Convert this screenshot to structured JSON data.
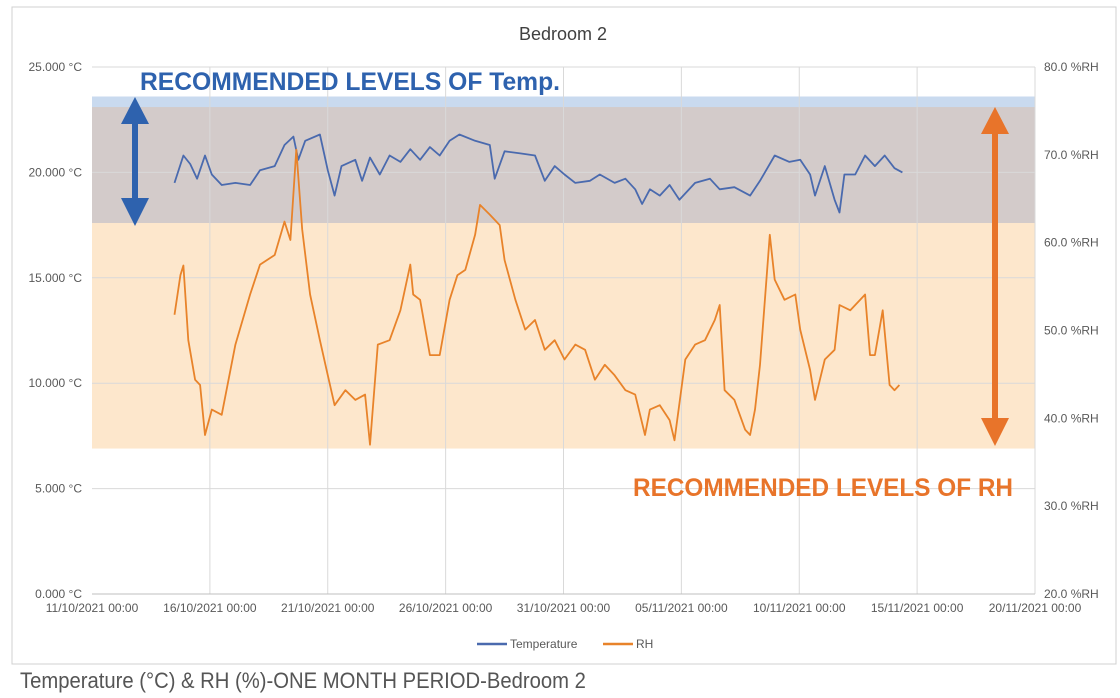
{
  "caption": "Temperature (°C) & RH (%)-ONE MONTH PERIOD-Bedroom 2",
  "chart_data": {
    "type": "line",
    "title": "Bedroom 2",
    "x_ticks": [
      "11/10/2021 00:00",
      "16/10/2021 00:00",
      "21/10/2021 00:00",
      "26/10/2021 00:00",
      "31/10/2021 00:00",
      "05/11/2021 00:00",
      "10/11/2021 00:00",
      "15/11/2021 00:00",
      "20/11/2021 00:00"
    ],
    "xlim": [
      "11/10/2021 00:00",
      "20/11/2021 00:00"
    ],
    "y_left": {
      "ticks": [
        "0.000 °C",
        "5.000 °C",
        "10.000 °C",
        "15.000 °C",
        "20.000 °C",
        "25.000 °C"
      ],
      "lim": [
        0,
        25
      ],
      "unit": "°C"
    },
    "y_right": {
      "ticks": [
        "20.0 %RH",
        "30.0 %RH",
        "40.0 %RH",
        "50.0 %RH",
        "60.0 %RH",
        "70.0 %RH",
        "80.0 %RH"
      ],
      "lim": [
        20,
        80
      ],
      "unit": "%RH"
    },
    "grid": "vertical and horizontal",
    "legend": {
      "placement": "bottom",
      "entries": [
        "Temperature",
        "RH"
      ]
    },
    "colors": {
      "temperature": "#4A6AAE",
      "rh": "#E8832A",
      "temp_band": "#D3CBCA",
      "temp_band_top": "#C9DAEF",
      "rh_band": "#FDE7CC",
      "temp_annotation": "#2E62AE",
      "rh_annotation": "#E8742A"
    },
    "bands_degC": {
      "temp_band": [
        17.6,
        23.3
      ],
      "temp_band_top": [
        23.1,
        23.6
      ],
      "rh_band": [
        6.9,
        17.6
      ]
    },
    "annotations": {
      "temp": "RECOMMENDED LEVELS OF  Temp.",
      "rh": "RECOMMENDED LEVELS OF  RH"
    },
    "series": [
      {
        "name": "Temperature",
        "axis": "left",
        "points": [
          [
            "14/10/2021 12:00",
            19.5
          ],
          [
            "14/10/2021 21:00",
            20.8
          ],
          [
            "15/10/2021 04:00",
            20.4
          ],
          [
            "15/10/2021 11:00",
            19.7
          ],
          [
            "15/10/2021 19:00",
            20.8
          ],
          [
            "16/10/2021 02:00",
            19.9
          ],
          [
            "16/10/2021 12:00",
            19.4
          ],
          [
            "17/10/2021 02:00",
            19.5
          ],
          [
            "17/10/2021 17:00",
            19.4
          ],
          [
            "18/10/2021 03:00",
            20.1
          ],
          [
            "18/10/2021 18:00",
            20.3
          ],
          [
            "19/10/2021 04:00",
            21.3
          ],
          [
            "19/10/2021 13:00",
            21.7
          ],
          [
            "19/10/2021 18:00",
            20.6
          ],
          [
            "20/10/2021 01:00",
            21.5
          ],
          [
            "20/10/2021 16:00",
            21.8
          ],
          [
            "21/10/2021 00:00",
            20.1
          ],
          [
            "21/10/2021 07:00",
            18.9
          ],
          [
            "21/10/2021 14:00",
            20.3
          ],
          [
            "22/10/2021 04:00",
            20.6
          ],
          [
            "22/10/2021 11:00",
            19.6
          ],
          [
            "22/10/2021 19:00",
            20.7
          ],
          [
            "23/10/2021 05:00",
            19.9
          ],
          [
            "23/10/2021 15:00",
            20.8
          ],
          [
            "24/10/2021 02:00",
            20.5
          ],
          [
            "24/10/2021 12:00",
            21.1
          ],
          [
            "24/10/2021 22:00",
            20.6
          ],
          [
            "25/10/2021 08:00",
            21.2
          ],
          [
            "25/10/2021 18:00",
            20.8
          ],
          [
            "26/10/2021 04:00",
            21.5
          ],
          [
            "26/10/2021 14:00",
            21.8
          ],
          [
            "27/10/2021 06:00",
            21.5
          ],
          [
            "27/10/2021 21:00",
            21.3
          ],
          [
            "28/10/2021 02:00",
            19.7
          ],
          [
            "28/10/2021 12:00",
            21.0
          ],
          [
            "29/10/2021 04:00",
            20.9
          ],
          [
            "29/10/2021 19:00",
            20.8
          ],
          [
            "30/10/2021 05:00",
            19.6
          ],
          [
            "30/10/2021 15:00",
            20.3
          ],
          [
            "31/10/2021 01:00",
            19.9
          ],
          [
            "31/10/2021 12:00",
            19.5
          ],
          [
            "01/11/2021 03:00",
            19.6
          ],
          [
            "01/11/2021 13:00",
            19.9
          ],
          [
            "02/11/2021 04:00",
            19.5
          ],
          [
            "02/11/2021 15:00",
            19.7
          ],
          [
            "03/11/2021 01:00",
            19.2
          ],
          [
            "03/11/2021 08:00",
            18.5
          ],
          [
            "03/11/2021 16:00",
            19.2
          ],
          [
            "04/11/2021 02:00",
            18.9
          ],
          [
            "04/11/2021 12:00",
            19.4
          ],
          [
            "04/11/2021 22:00",
            18.7
          ],
          [
            "05/11/2021 14:00",
            19.5
          ],
          [
            "06/11/2021 05:00",
            19.7
          ],
          [
            "06/11/2021 15:00",
            19.2
          ],
          [
            "07/11/2021 06:00",
            19.3
          ],
          [
            "07/11/2021 22:00",
            18.9
          ],
          [
            "08/11/2021 08:00",
            19.6
          ],
          [
            "08/11/2021 23:00",
            20.8
          ],
          [
            "09/11/2021 14:00",
            20.5
          ],
          [
            "10/11/2021 01:00",
            20.6
          ],
          [
            "10/11/2021 11:00",
            19.9
          ],
          [
            "10/11/2021 16:00",
            18.9
          ],
          [
            "11/11/2021 02:00",
            20.3
          ],
          [
            "11/11/2021 12:00",
            18.7
          ],
          [
            "11/11/2021 17:00",
            18.1
          ],
          [
            "11/11/2021 22:00",
            19.9
          ],
          [
            "12/11/2021 09:00",
            19.9
          ],
          [
            "12/11/2021 19:00",
            20.8
          ],
          [
            "13/11/2021 05:00",
            20.3
          ],
          [
            "13/11/2021 15:00",
            20.8
          ],
          [
            "14/11/2021 01:00",
            20.2
          ],
          [
            "14/11/2021 09:00",
            20.0
          ]
        ]
      },
      {
        "name": "RH",
        "axis": "right",
        "points": [
          [
            "14/10/2021 12:00",
            51.8
          ],
          [
            "14/10/2021 18:00",
            56.3
          ],
          [
            "14/10/2021 21:00",
            57.4
          ],
          [
            "15/10/2021 02:00",
            48.9
          ],
          [
            "15/10/2021 09:00",
            44.4
          ],
          [
            "15/10/2021 14:00",
            43.8
          ],
          [
            "15/10/2021 19:00",
            38.1
          ],
          [
            "16/10/2021 02:00",
            41.0
          ],
          [
            "16/10/2021 12:00",
            40.4
          ],
          [
            "17/10/2021 02:00",
            48.4
          ],
          [
            "17/10/2021 17:00",
            54.1
          ],
          [
            "18/10/2021 03:00",
            57.5
          ],
          [
            "18/10/2021 18:00",
            58.6
          ],
          [
            "19/10/2021 04:00",
            62.4
          ],
          [
            "19/10/2021 10:00",
            60.3
          ],
          [
            "19/10/2021 16:00",
            70.6
          ],
          [
            "19/10/2021 22:00",
            61.5
          ],
          [
            "20/10/2021 06:00",
            54.1
          ],
          [
            "20/10/2021 16:00",
            48.9
          ],
          [
            "21/10/2021 00:00",
            44.9
          ],
          [
            "21/10/2021 07:00",
            41.5
          ],
          [
            "21/10/2021 18:00",
            43.2
          ],
          [
            "22/10/2021 04:00",
            42.1
          ],
          [
            "22/10/2021 14:00",
            42.7
          ],
          [
            "22/10/2021 19:00",
            37.0
          ],
          [
            "23/10/2021 03:00",
            48.4
          ],
          [
            "23/10/2021 15:00",
            48.9
          ],
          [
            "24/10/2021 02:00",
            52.3
          ],
          [
            "24/10/2021 12:00",
            57.5
          ],
          [
            "24/10/2021 15:00",
            54.1
          ],
          [
            "24/10/2021 22:00",
            53.5
          ],
          [
            "25/10/2021 08:00",
            47.2
          ],
          [
            "25/10/2021 18:00",
            47.2
          ],
          [
            "26/10/2021 04:00",
            53.5
          ],
          [
            "26/10/2021 12:00",
            56.3
          ],
          [
            "26/10/2021 20:00",
            56.9
          ],
          [
            "27/10/2021 06:00",
            60.9
          ],
          [
            "27/10/2021 11:00",
            64.3
          ],
          [
            "27/10/2021 21:00",
            63.2
          ],
          [
            "28/10/2021 07:00",
            62.0
          ],
          [
            "28/10/2021 12:00",
            58.0
          ],
          [
            "28/10/2021 23:00",
            53.5
          ],
          [
            "29/10/2021 09:00",
            50.1
          ],
          [
            "29/10/2021 19:00",
            51.2
          ],
          [
            "30/10/2021 05:00",
            47.8
          ],
          [
            "30/10/2021 15:00",
            48.9
          ],
          [
            "31/10/2021 01:00",
            46.7
          ],
          [
            "31/10/2021 12:00",
            48.4
          ],
          [
            "31/10/2021 22:00",
            47.8
          ],
          [
            "01/11/2021 08:00",
            44.4
          ],
          [
            "01/11/2021 18:00",
            46.1
          ],
          [
            "02/11/2021 04:00",
            44.9
          ],
          [
            "02/11/2021 15:00",
            43.2
          ],
          [
            "03/11/2021 01:00",
            42.7
          ],
          [
            "03/11/2021 11:00",
            38.1
          ],
          [
            "03/11/2021 16:00",
            41.0
          ],
          [
            "04/11/2021 02:00",
            41.5
          ],
          [
            "04/11/2021 12:00",
            39.8
          ],
          [
            "04/11/2021 17:00",
            37.5
          ],
          [
            "05/11/2021 04:00",
            46.7
          ],
          [
            "05/11/2021 14:00",
            48.4
          ],
          [
            "06/11/2021 00:00",
            48.9
          ],
          [
            "06/11/2021 10:00",
            51.2
          ],
          [
            "06/11/2021 15:00",
            52.9
          ],
          [
            "06/11/2021 20:00",
            43.2
          ],
          [
            "07/11/2021 06:00",
            42.1
          ],
          [
            "07/11/2021 17:00",
            38.7
          ],
          [
            "07/11/2021 22:00",
            38.1
          ],
          [
            "08/11/2021 03:00",
            41.0
          ],
          [
            "08/11/2021 08:00",
            46.1
          ],
          [
            "08/11/2021 18:00",
            60.9
          ],
          [
            "08/11/2021 23:00",
            55.8
          ],
          [
            "09/11/2021 09:00",
            53.5
          ],
          [
            "09/11/2021 20:00",
            54.1
          ],
          [
            "10/11/2021 01:00",
            50.1
          ],
          [
            "10/11/2021 11:00",
            45.5
          ],
          [
            "10/11/2021 16:00",
            42.1
          ],
          [
            "11/11/2021 02:00",
            46.7
          ],
          [
            "11/11/2021 12:00",
            47.8
          ],
          [
            "11/11/2021 17:00",
            52.9
          ],
          [
            "12/11/2021 04:00",
            52.3
          ],
          [
            "12/11/2021 14:00",
            53.5
          ],
          [
            "12/11/2021 19:00",
            54.1
          ],
          [
            "13/11/2021 00:00",
            47.2
          ],
          [
            "13/11/2021 05:00",
            47.2
          ],
          [
            "13/11/2021 13:00",
            52.3
          ],
          [
            "13/11/2021 20:00",
            43.8
          ],
          [
            "14/11/2021 01:00",
            43.2
          ],
          [
            "14/11/2021 06:00",
            43.8
          ]
        ]
      }
    ]
  }
}
